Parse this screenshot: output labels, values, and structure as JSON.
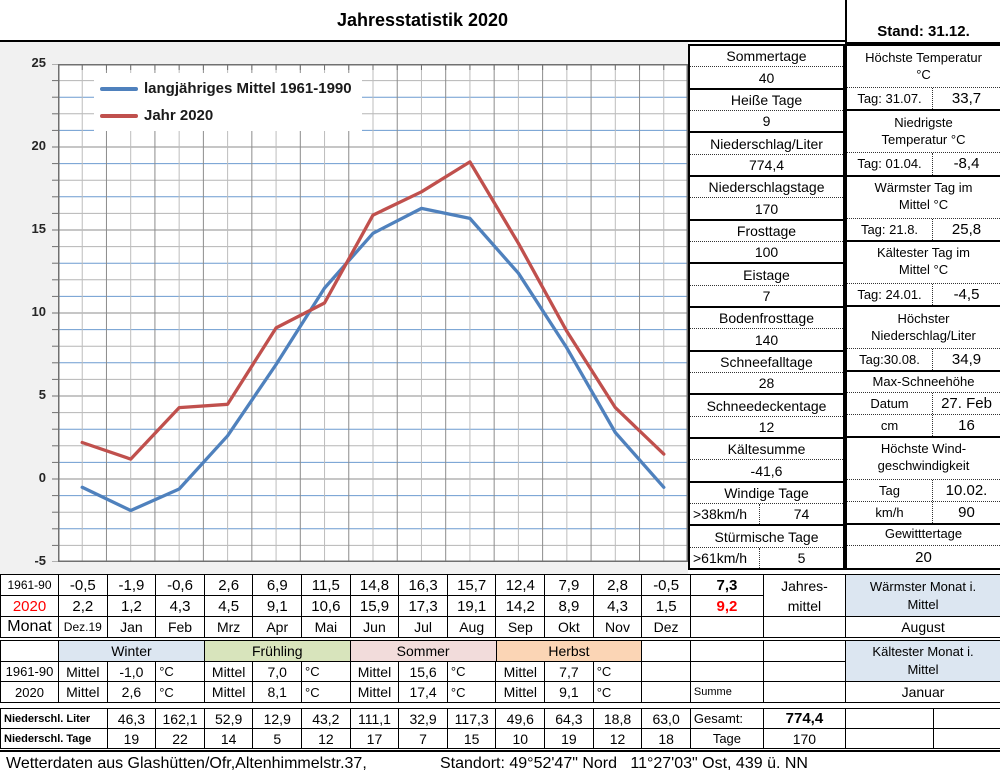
{
  "header": {
    "title": "Jahresstatistik 2020",
    "stand": "Stand: 31.12."
  },
  "chart_data": {
    "type": "line",
    "categories": [
      "Dez.19",
      "Jan",
      "Feb",
      "Mrz",
      "Apr",
      "Mai",
      "Jun",
      "Jul",
      "Aug",
      "Sep",
      "Okt",
      "Nov",
      "Dez"
    ],
    "series": [
      {
        "name": "langjähriges Mittel 1961-1990",
        "color": "#4F81BD",
        "values": [
          -0.5,
          -1.9,
          -0.6,
          2.6,
          6.9,
          11.5,
          14.8,
          16.3,
          15.7,
          12.4,
          7.9,
          2.8,
          -0.5
        ]
      },
      {
        "name": "Jahr 2020",
        "color": "#C0504D",
        "values": [
          2.2,
          1.2,
          4.3,
          4.5,
          9.1,
          10.6,
          15.9,
          17.3,
          19.1,
          14.2,
          8.9,
          4.3,
          1.5
        ]
      }
    ],
    "title": "Jahresstatistik 2020",
    "xlabel": "",
    "ylabel": "",
    "ylim": [
      -5,
      25
    ],
    "yticks": [
      25,
      20,
      15,
      10,
      5,
      0,
      -5
    ],
    "grid": "fine mesh, horizontal blue/gray alternating, vertical gray half-month",
    "legend_position": "top-left"
  },
  "stats_left": [
    {
      "label": "Sommertage",
      "value": "40"
    },
    {
      "label": "Heiße Tage",
      "value": "9"
    },
    {
      "label": "Niederschlag/Liter",
      "value": "774,4"
    },
    {
      "label": "Niederschlagstage",
      "value": "170"
    },
    {
      "label": "Frosttage",
      "value": "100"
    },
    {
      "label": "Eistage",
      "value": "7"
    },
    {
      "label": "Bodenfrosttage",
      "value": "140"
    },
    {
      "label": "Schneefalltage",
      "value": "28"
    },
    {
      "label": "Schneedeckentage",
      "value": "12"
    },
    {
      "label": "Kältesumme",
      "value": "-41,6"
    },
    {
      "label": "Windige Tage",
      "sub": ">38km/h",
      "value": "74"
    },
    {
      "label": "Stürmische Tage",
      "sub": ">61km/h",
      "value": "5"
    }
  ],
  "stats_right": [
    {
      "title": [
        "Höchste Temperatur",
        "°C"
      ],
      "rows": [
        [
          "Tag: 31.07.",
          "33,7"
        ]
      ]
    },
    {
      "title": [
        "Niedrigste",
        "Temperatur °C"
      ],
      "rows": [
        [
          "Tag: 01.04.",
          "-8,4"
        ]
      ]
    },
    {
      "title": [
        "Wärmster Tag im",
        "Mittel °C"
      ],
      "rows": [
        [
          "Tag: 21.8.",
          "25,8"
        ]
      ]
    },
    {
      "title": [
        "Kältester Tag im",
        "Mittel °C"
      ],
      "rows": [
        [
          "Tag: 24.01.",
          "-4,5"
        ]
      ]
    },
    {
      "title": [
        "Höchster",
        "Niederschlag/Liter"
      ],
      "rows": [
        [
          "Tag:30.08.",
          "34,9"
        ]
      ]
    },
    {
      "title": [
        "Max-Schneehöhe"
      ],
      "rows": [
        [
          "Datum",
          "27. Feb"
        ],
        [
          "cm",
          "16"
        ]
      ]
    },
    {
      "title": [
        "Höchste Wind-",
        "geschwindigkeit"
      ],
      "rows": [
        [
          "Tag",
          "10.02."
        ],
        [
          "km/h",
          "90"
        ]
      ]
    },
    {
      "title": [
        "Gewitttertage"
      ],
      "value": "20"
    }
  ],
  "monthly_table": {
    "label_1961": "1961-90",
    "label_2020": "2020",
    "label_monat": "Monat",
    "v1961": [
      "-0,5",
      "-1,9",
      "-0,6",
      "2,6",
      "6,9",
      "11,5",
      "14,8",
      "16,3",
      "15,7",
      "12,4",
      "7,9",
      "2,8",
      "-0,5"
    ],
    "v2020": [
      "2,2",
      "1,2",
      "4,3",
      "4,5",
      "9,1",
      "10,6",
      "15,9",
      "17,3",
      "19,1",
      "14,2",
      "8,9",
      "4,3",
      "1,5"
    ],
    "months": [
      "Dez.19",
      "Jan",
      "Feb",
      "Mrz",
      "Apr",
      "Mai",
      "Jun",
      "Jul",
      "Aug",
      "Sep",
      "Okt",
      "Nov",
      "Dez"
    ],
    "annual": {
      "v1961": "7,3",
      "v2020": "9,2",
      "label1": "Jahres-",
      "label2": "mittel"
    },
    "warmest": {
      "line1": "Wärmster Monat i.",
      "line2": "Mittel",
      "value": "August",
      "bg": "#DCE6F1"
    }
  },
  "season_table": {
    "label_1961": "1961-90",
    "label_2020": "2020",
    "mittel_label": "Mittel",
    "unit": "°C",
    "seasons": [
      {
        "name": "Winter",
        "color": "#DCE6F1",
        "v1961": "-1,0",
        "v2020": "2,6"
      },
      {
        "name": "Frühling",
        "color": "#D8E4BC",
        "v1961": "7,0",
        "v2020": "8,1"
      },
      {
        "name": "Sommer",
        "color": "#F2DCDB",
        "v1961": "15,6",
        "v2020": "17,4"
      },
      {
        "name": "Herbst",
        "color": "#FBD5B5",
        "v1961": "7,7",
        "v2020": "9,1"
      }
    ],
    "summe_label": "Summe",
    "coldest": {
      "line1": "Kältester Monat i.",
      "line2": "Mittel",
      "value": "Januar",
      "bg": "#DCE6F1"
    }
  },
  "precip_table": {
    "label_liter": "Niederschl. Liter",
    "label_tage": "Niederschl. Tage",
    "liter": [
      "46,3",
      "162,1",
      "52,9",
      "12,9",
      "43,2",
      "111,1",
      "32,9",
      "117,3",
      "49,6",
      "64,3",
      "18,8",
      "63,0"
    ],
    "tage": [
      "19",
      "22",
      "14",
      "5",
      "12",
      "17",
      "7",
      "15",
      "10",
      "19",
      "12",
      "18"
    ],
    "gesamt_label": "Gesamt:",
    "gesamt": "774,4",
    "tage_total_label": "Tage",
    "tage_total": "170"
  },
  "footer": {
    "left": "Wetterdaten aus Glashütten/Ofr,Altenhimmelstr.37,",
    "right": "Standort: 49°52'47\" Nord   11°27'03\" Ost, 439 ü. NN"
  },
  "colors": {
    "chart_area_bg": "#F1F1F1",
    "grid_blue": "#6D9CD0",
    "grid_gray_light": "#B5B5B5",
    "grid_gray_dark": "#8C8C8C",
    "highlight_blue_cell": "#DCE6F1",
    "red_text": "#FF0000"
  }
}
